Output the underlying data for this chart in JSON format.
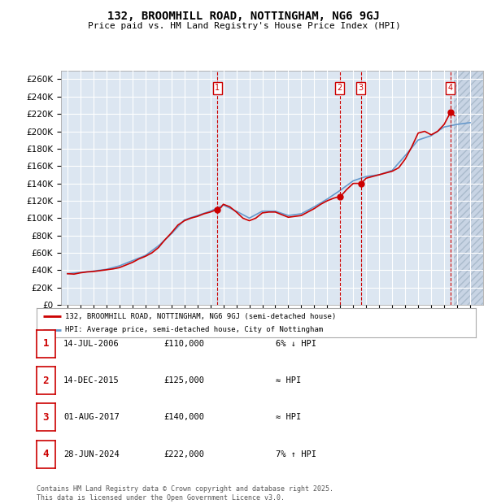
{
  "title": "132, BROOMHILL ROAD, NOTTINGHAM, NG6 9GJ",
  "subtitle": "Price paid vs. HM Land Registry's House Price Index (HPI)",
  "legend_label_red": "132, BROOMHILL ROAD, NOTTINGHAM, NG6 9GJ (semi-detached house)",
  "legend_label_blue": "HPI: Average price, semi-detached house, City of Nottingham",
  "footer": "Contains HM Land Registry data © Crown copyright and database right 2025.\nThis data is licensed under the Open Government Licence v3.0.",
  "transactions": [
    {
      "num": 1,
      "date": "14-JUL-2006",
      "price": "£110,000",
      "rel": "6% ↓ HPI",
      "year": 2006.54
    },
    {
      "num": 2,
      "date": "14-DEC-2015",
      "price": "£125,000",
      "rel": "≈ HPI",
      "year": 2015.96
    },
    {
      "num": 3,
      "date": "01-AUG-2017",
      "price": "£140,000",
      "rel": "≈ HPI",
      "year": 2017.58
    },
    {
      "num": 4,
      "date": "28-JUN-2024",
      "price": "£222,000",
      "rel": "7% ↑ HPI",
      "year": 2024.49
    }
  ],
  "ylim": [
    0,
    270000
  ],
  "xlim_start": 1994.5,
  "xlim_end": 2027.0,
  "yticks": [
    0,
    20000,
    40000,
    60000,
    80000,
    100000,
    120000,
    140000,
    160000,
    180000,
    200000,
    220000,
    240000,
    260000
  ],
  "fig_bg": "#ffffff",
  "plot_bg": "#dce6f1",
  "grid_color": "#ffffff",
  "red_color": "#cc0000",
  "blue_color": "#6699cc",
  "hpi_data": {
    "years": [
      1995,
      1996,
      1997,
      1998,
      1999,
      2000,
      2001,
      2002,
      2003,
      2004,
      2005,
      2006,
      2007,
      2008,
      2009,
      2010,
      2011,
      2012,
      2013,
      2014,
      2015,
      2016,
      2017,
      2018,
      2019,
      2020,
      2021,
      2022,
      2023,
      2024,
      2025,
      2026
    ],
    "values": [
      36000,
      37500,
      39000,
      41000,
      45000,
      51000,
      57000,
      68000,
      82000,
      98000,
      103000,
      108000,
      115000,
      108000,
      100000,
      108000,
      108000,
      103000,
      105000,
      113000,
      122000,
      132000,
      143000,
      148000,
      150000,
      155000,
      172000,
      190000,
      195000,
      205000,
      208000,
      210000
    ]
  },
  "price_data": {
    "years": [
      1995.0,
      1995.5,
      1996.0,
      1996.5,
      1997.0,
      1997.5,
      1998.0,
      1998.5,
      1999.0,
      1999.5,
      2000.0,
      2000.5,
      2001.0,
      2001.5,
      2002.0,
      2002.5,
      2003.0,
      2003.5,
      2004.0,
      2004.5,
      2005.0,
      2005.5,
      2006.0,
      2006.54,
      2006.8,
      2007.0,
      2007.5,
      2008.0,
      2008.5,
      2009.0,
      2009.5,
      2010.0,
      2010.5,
      2011.0,
      2011.5,
      2012.0,
      2012.5,
      2013.0,
      2013.5,
      2014.0,
      2014.5,
      2015.0,
      2015.5,
      2015.96,
      2016.2,
      2016.5,
      2017.0,
      2017.58,
      2017.8,
      2018.0,
      2018.5,
      2019.0,
      2019.5,
      2020.0,
      2020.5,
      2021.0,
      2021.5,
      2022.0,
      2022.5,
      2023.0,
      2023.5,
      2024.0,
      2024.49,
      2024.8
    ],
    "values": [
      36000,
      35500,
      37000,
      38000,
      38500,
      39500,
      40500,
      41500,
      43000,
      46000,
      49000,
      53000,
      56000,
      60000,
      66000,
      75000,
      83000,
      92000,
      97000,
      100000,
      102000,
      105000,
      107000,
      110000,
      112000,
      116000,
      113000,
      107000,
      100000,
      97000,
      100000,
      106000,
      107000,
      107000,
      104000,
      101000,
      102000,
      103000,
      107000,
      111000,
      116000,
      120000,
      123000,
      125000,
      128000,
      133000,
      140000,
      140000,
      143000,
      146000,
      148000,
      150000,
      152000,
      154000,
      158000,
      168000,
      182000,
      198000,
      200000,
      196000,
      200000,
      208000,
      222000,
      218000
    ]
  },
  "sale_years": [
    2006.54,
    2015.96,
    2017.58,
    2024.49
  ],
  "sale_prices": [
    110000,
    125000,
    140000,
    222000
  ]
}
